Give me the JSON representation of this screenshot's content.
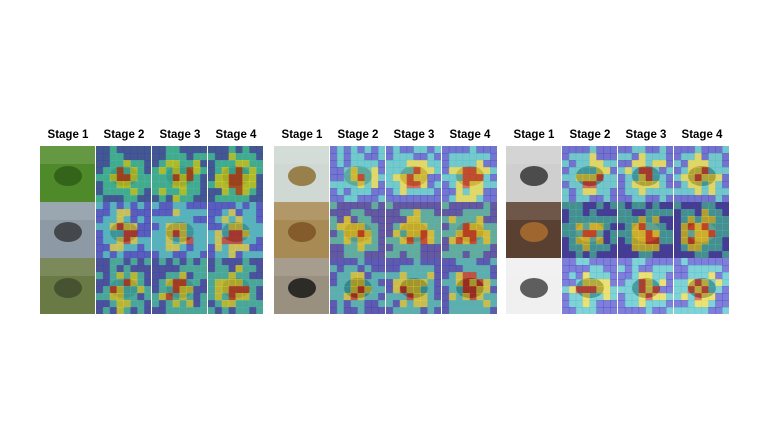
{
  "panels": [
    {
      "headers": [
        "Stage 1",
        "Stage 2",
        "Stage 3",
        "Stage 4"
      ],
      "rows": [
        {
          "image": "dragonfly-closeup-photo",
          "bg": "#4f8a2a",
          "accent": "#2c5a16"
        },
        {
          "image": "lighthouse-beach-photo",
          "bg": "#8d9aa6",
          "accent": "#333333"
        },
        {
          "image": "grazing-animals-field-photo",
          "bg": "#6a7a45",
          "accent": "#3f4a2a"
        }
      ]
    },
    {
      "headers": [
        "Stage 1",
        "Stage 2",
        "Stage 3",
        "Stage 4"
      ],
      "rows": [
        {
          "image": "dragonfly-on-stem-photo",
          "bg": "#cfd8d2",
          "accent": "#8a6a2a"
        },
        {
          "image": "gazelle-grassland-photo",
          "bg": "#a88a55",
          "accent": "#7a5020"
        },
        {
          "image": "black-bear-photo",
          "bg": "#9a9080",
          "accent": "#111111"
        }
      ]
    },
    {
      "headers": [
        "Stage 1",
        "Stage 2",
        "Stage 3",
        "Stage 4"
      ],
      "rows": [
        {
          "image": "fly-insect-photo",
          "bg": "#cfcfcf",
          "accent": "#2a2a2a"
        },
        {
          "image": "lion-portrait-photo",
          "bg": "#5a4030",
          "accent": "#b07030"
        },
        {
          "image": "beetle-on-rock-photo",
          "bg": "#f0f0f0",
          "accent": "#3a3a3a"
        }
      ]
    }
  ],
  "colors": {
    "heat_low": "#3a3acc",
    "heat_mid": "#3cc0c8",
    "heat_high": "#e8d830",
    "heat_peak": "#d43020"
  }
}
